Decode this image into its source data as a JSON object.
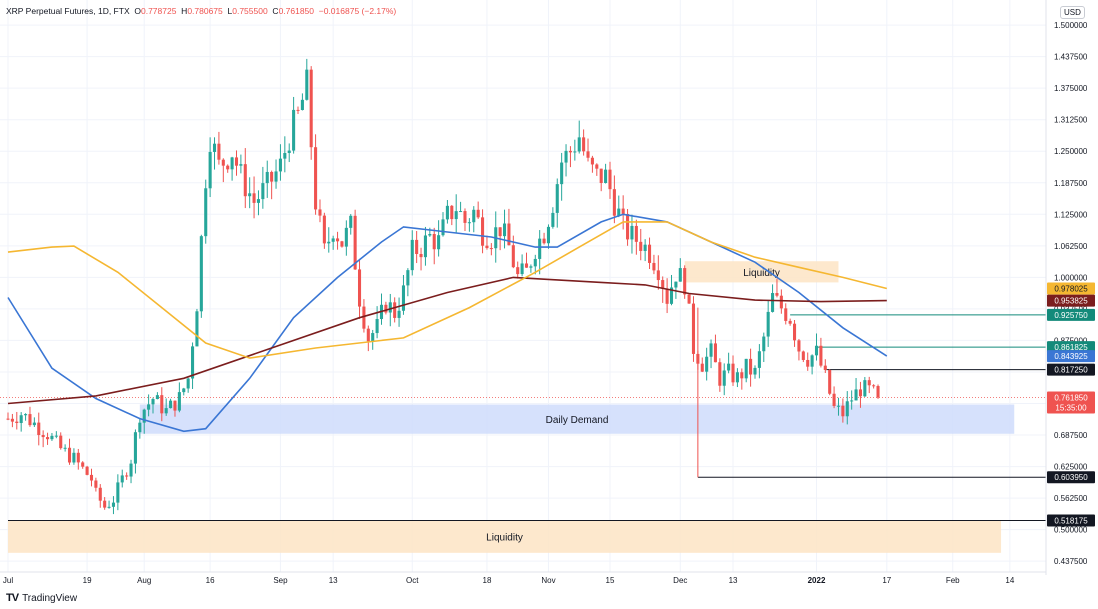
{
  "header": {
    "symbol": "XRP Perpetual Futures, 1D, FTX",
    "o_label": "O",
    "o_value": "0.778725",
    "h_label": "H",
    "h_value": "0.780675",
    "l_label": "L",
    "l_value": "0.755500",
    "c_label": "C",
    "c_value": "0.761850",
    "change": "−0.016875 (−2.17%)"
  },
  "currency_button": "USD",
  "branding": {
    "text": "TradingView",
    "mark": "TV"
  },
  "chart_data": {
    "type": "candlestick",
    "y_ticks": [
      "1.500000",
      "1.437500",
      "1.375000",
      "1.312500",
      "1.250000",
      "1.187500",
      "1.125000",
      "1.062500",
      "1.000000",
      "0.937500",
      "0.875000",
      "0.812500",
      "0.750000",
      "0.687500",
      "0.625000",
      "0.562500",
      "0.500000",
      "0.437500"
    ],
    "ylim": [
      0.42,
      1.52
    ],
    "x_ticks": [
      {
        "label": "Jul",
        "day": 0
      },
      {
        "label": "19",
        "day": 18
      },
      {
        "label": "Aug",
        "day": 31
      },
      {
        "label": "16",
        "day": 46
      },
      {
        "label": "Sep",
        "day": 62
      },
      {
        "label": "13",
        "day": 74
      },
      {
        "label": "Oct",
        "day": 92
      },
      {
        "label": "18",
        "day": 109
      },
      {
        "label": "Nov",
        "day": 123
      },
      {
        "label": "15",
        "day": 137
      },
      {
        "label": "Dec",
        "day": 153
      },
      {
        "label": "13",
        "day": 165
      },
      {
        "label": "2022",
        "day": 184
      },
      {
        "label": "17",
        "day": 200
      },
      {
        "label": "Feb",
        "day": 215
      },
      {
        "label": "14",
        "day": 228
      }
    ],
    "price_labels": [
      {
        "value": 0.978025,
        "text": "0.978025",
        "color": "#f5b731",
        "text_color": "#131722"
      },
      {
        "value": 0.953825,
        "text": "0.953825",
        "color": "#7b1d1d",
        "text_color": "#ffffff"
      },
      {
        "value": 0.92575,
        "text": "0.925750",
        "color": "#138a7a",
        "text_color": "#ffffff"
      },
      {
        "value": 0.861825,
        "text": "0.861825",
        "color": "#138a7a",
        "text_color": "#ffffff"
      },
      {
        "value": 0.843925,
        "text": "0.843925",
        "color": "#3a76d4",
        "text_color": "#ffffff"
      },
      {
        "value": 0.81725,
        "text": "0.817250",
        "color": "#131722",
        "text_color": "#ffffff"
      },
      {
        "value": 0.76185,
        "text": "0.761850",
        "color": "#ef5350",
        "text_color": "#ffffff",
        "sub": "15:35:00"
      },
      {
        "value": 0.60395,
        "text": "0.603950",
        "color": "#131722",
        "text_color": "#ffffff"
      },
      {
        "value": 0.518175,
        "text": "0.518175",
        "color": "#131722",
        "text_color": "#ffffff"
      }
    ],
    "zones": [
      {
        "name": "Liquidity",
        "x0": 154,
        "x1": 189,
        "y0": 0.99,
        "y1": 1.032,
        "color": "#fde4c4",
        "text": "Liquidity"
      },
      {
        "name": "Daily Demand",
        "x0": 30,
        "x1": 229,
        "y0": 0.69,
        "y1": 0.748,
        "color": "#cfdcfb",
        "text": "Daily Demand"
      },
      {
        "name": "Liquidity",
        "x0": 0,
        "x1": 226,
        "y0": 0.454,
        "y1": 0.518,
        "color": "#fde4c4",
        "text": "Liquidity"
      }
    ],
    "levels": [
      {
        "value": 0.92575,
        "x0": 178,
        "color": "#138a7a"
      },
      {
        "value": 0.861825,
        "x0": 184,
        "color": "#138a7a"
      },
      {
        "value": 0.81725,
        "x0": 186,
        "color": "#131722"
      },
      {
        "value": 0.60395,
        "x0": 157,
        "color": "#131722"
      },
      {
        "value": 0.518175,
        "x0": 0,
        "color": "#131722"
      }
    ],
    "ma_series": [
      {
        "name": "MA blue",
        "color": "#3a76d4",
        "points": [
          [
            0,
            0.96
          ],
          [
            10,
            0.82
          ],
          [
            20,
            0.76
          ],
          [
            30,
            0.72
          ],
          [
            40,
            0.695
          ],
          [
            45,
            0.7
          ],
          [
            55,
            0.8
          ],
          [
            65,
            0.92
          ],
          [
            75,
            1.0
          ],
          [
            85,
            1.07
          ],
          [
            90,
            1.1
          ],
          [
            100,
            1.09
          ],
          [
            110,
            1.08
          ],
          [
            120,
            1.06
          ],
          [
            125,
            1.06
          ],
          [
            135,
            1.11
          ],
          [
            140,
            1.125
          ],
          [
            150,
            1.11
          ],
          [
            160,
            1.07
          ],
          [
            170,
            1.03
          ],
          [
            180,
            0.97
          ],
          [
            190,
            0.9
          ],
          [
            200,
            0.844
          ]
        ]
      },
      {
        "name": "MA maroon",
        "color": "#7b1d1d",
        "points": [
          [
            0,
            0.75
          ],
          [
            20,
            0.765
          ],
          [
            40,
            0.8
          ],
          [
            60,
            0.86
          ],
          [
            80,
            0.92
          ],
          [
            100,
            0.97
          ],
          [
            115,
            1.0
          ],
          [
            125,
            0.995
          ],
          [
            135,
            0.99
          ],
          [
            145,
            0.985
          ],
          [
            155,
            0.968
          ],
          [
            170,
            0.955
          ],
          [
            185,
            0.952
          ],
          [
            200,
            0.954
          ]
        ]
      },
      {
        "name": "MA yellow",
        "color": "#f5b731",
        "points": [
          [
            0,
            1.05
          ],
          [
            10,
            1.06
          ],
          [
            15,
            1.062
          ],
          [
            25,
            1.01
          ],
          [
            35,
            0.94
          ],
          [
            45,
            0.87
          ],
          [
            55,
            0.84
          ],
          [
            70,
            0.86
          ],
          [
            90,
            0.88
          ],
          [
            105,
            0.94
          ],
          [
            120,
            1.01
          ],
          [
            130,
            1.06
          ],
          [
            140,
            1.11
          ],
          [
            150,
            1.11
          ],
          [
            160,
            1.07
          ],
          [
            170,
            1.04
          ],
          [
            180,
            1.02
          ],
          [
            190,
            1.0
          ],
          [
            200,
            0.978
          ]
        ]
      }
    ],
    "candle_anchors": [
      [
        0,
        0.72
      ],
      [
        3,
        0.73
      ],
      [
        6,
        0.71
      ],
      [
        9,
        0.69
      ],
      [
        12,
        0.66
      ],
      [
        15,
        0.64
      ],
      [
        17,
        0.62
      ],
      [
        19,
        0.6
      ],
      [
        20,
        0.57
      ],
      [
        22,
        0.545
      ],
      [
        24,
        0.56
      ],
      [
        26,
        0.6
      ],
      [
        28,
        0.64
      ],
      [
        30,
        0.73
      ],
      [
        33,
        0.76
      ],
      [
        36,
        0.735
      ],
      [
        39,
        0.76
      ],
      [
        41,
        0.8
      ],
      [
        43,
        0.95
      ],
      [
        45,
        1.2
      ],
      [
        46,
        1.28
      ],
      [
        48,
        1.22
      ],
      [
        51,
        1.25
      ],
      [
        53,
        1.2
      ],
      [
        56,
        1.15
      ],
      [
        59,
        1.18
      ],
      [
        62,
        1.22
      ],
      [
        64,
        1.28
      ],
      [
        66,
        1.32
      ],
      [
        68,
        1.38
      ],
      [
        70,
        1.15
      ],
      [
        72,
        1.05
      ],
      [
        74,
        1.1
      ],
      [
        76,
        1.07
      ],
      [
        78,
        1.1
      ],
      [
        80,
        0.96
      ],
      [
        82,
        0.88
      ],
      [
        84,
        0.9
      ],
      [
        86,
        0.95
      ],
      [
        88,
        0.93
      ],
      [
        90,
        0.97
      ],
      [
        92,
        1.05
      ],
      [
        94,
        1.06
      ],
      [
        96,
        1.08
      ],
      [
        98,
        1.07
      ],
      [
        100,
        1.12
      ],
      [
        102,
        1.14
      ],
      [
        104,
        1.11
      ],
      [
        106,
        1.13
      ],
      [
        108,
        1.09
      ],
      [
        110,
        1.08
      ],
      [
        112,
        1.1
      ],
      [
        114,
        1.06
      ],
      [
        116,
        1.0
      ],
      [
        118,
        1.01
      ],
      [
        120,
        1.06
      ],
      [
        122,
        1.09
      ],
      [
        124,
        1.15
      ],
      [
        126,
        1.23
      ],
      [
        128,
        1.25
      ],
      [
        130,
        1.28
      ],
      [
        132,
        1.22
      ],
      [
        134,
        1.2
      ],
      [
        136,
        1.2
      ],
      [
        138,
        1.15
      ],
      [
        140,
        1.1
      ],
      [
        142,
        1.08
      ],
      [
        144,
        1.07
      ],
      [
        146,
        1.05
      ],
      [
        148,
        1.02
      ],
      [
        150,
        0.96
      ],
      [
        152,
        1.01
      ],
      [
        154,
        0.99
      ],
      [
        156,
        0.86
      ],
      [
        158,
        0.83
      ],
      [
        160,
        0.85
      ],
      [
        162,
        0.8
      ],
      [
        164,
        0.81
      ],
      [
        166,
        0.8
      ],
      [
        168,
        0.82
      ],
      [
        170,
        0.81
      ],
      [
        172,
        0.88
      ],
      [
        174,
        0.96
      ],
      [
        176,
        0.94
      ],
      [
        178,
        0.92
      ],
      [
        180,
        0.86
      ],
      [
        182,
        0.84
      ],
      [
        184,
        0.85
      ],
      [
        186,
        0.8
      ],
      [
        188,
        0.74
      ],
      [
        190,
        0.73
      ],
      [
        192,
        0.76
      ],
      [
        194,
        0.78
      ],
      [
        196,
        0.775
      ],
      [
        198,
        0.762
      ]
    ]
  }
}
